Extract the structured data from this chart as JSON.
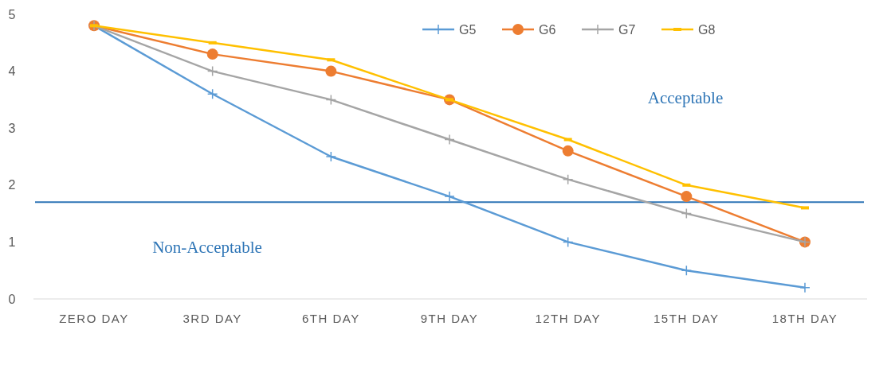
{
  "chart_data": {
    "type": "line",
    "categories": [
      "ZERO DAY",
      "3RD DAY",
      "6TH DAY",
      "9TH DAY",
      "12TH DAY",
      "15TH DAY",
      "18TH DAY"
    ],
    "series": [
      {
        "name": "G5",
        "color": "#5b9bd5",
        "marker": "cross",
        "values": [
          4.8,
          3.6,
          2.5,
          1.8,
          1.0,
          0.5,
          0.2
        ]
      },
      {
        "name": "G6",
        "color": "#ed7d31",
        "marker": "circle",
        "values": [
          4.8,
          4.3,
          4.0,
          3.5,
          2.6,
          1.8,
          1.0
        ]
      },
      {
        "name": "G7",
        "color": "#a5a5a5",
        "marker": "cross",
        "values": [
          4.8,
          4.0,
          3.5,
          2.8,
          2.1,
          1.5,
          1.0
        ]
      },
      {
        "name": "G8",
        "color": "#ffc000",
        "marker": "square",
        "values": [
          4.8,
          4.5,
          4.2,
          3.5,
          2.8,
          2.0,
          1.6
        ]
      }
    ],
    "ylim": [
      0,
      5
    ],
    "yticks": [
      0,
      1,
      2,
      3,
      4,
      5
    ],
    "grid": false,
    "legend": "top",
    "ref_lines": [
      {
        "axis": "y",
        "value": 1.7,
        "color": "#2e75b6"
      }
    ],
    "annotations": [
      "Acceptable",
      "Non-Acceptable"
    ]
  }
}
